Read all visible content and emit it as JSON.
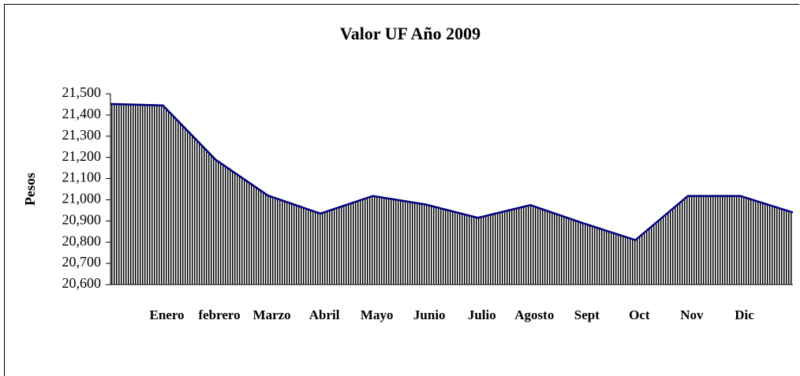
{
  "chart_data": {
    "type": "area",
    "title": "Valor UF Año 2009",
    "y_label": "Pesos",
    "categories": [
      null,
      "Enero",
      "febrero",
      "Marzo",
      "Abril",
      "Mayo",
      "Junio",
      "Julio",
      "Agosto",
      "Sept",
      "Oct",
      "Nov",
      "Dic",
      null
    ],
    "values": [
      21452,
      21445,
      21190,
      21020,
      20935,
      21018,
      20978,
      20915,
      20975,
      20890,
      20810,
      21018,
      21018,
      20940
    ],
    "color": "#000080",
    "ylim": [
      20600,
      21500
    ],
    "yticks": [
      {
        "value": 20600,
        "label": "20,600"
      },
      {
        "value": 20700,
        "label": "20,700"
      },
      {
        "value": 20800,
        "label": "20,800"
      },
      {
        "value": 20900,
        "label": "20,900"
      },
      {
        "value": 21000,
        "label": "21,000"
      },
      {
        "value": 21100,
        "label": "21,100"
      },
      {
        "value": 21200,
        "label": "21,200"
      },
      {
        "value": 21300,
        "label": "21,300"
      },
      {
        "value": 21400,
        "label": "21,400"
      },
      {
        "value": 21500,
        "label": "21,500"
      }
    ],
    "grid": false
  }
}
